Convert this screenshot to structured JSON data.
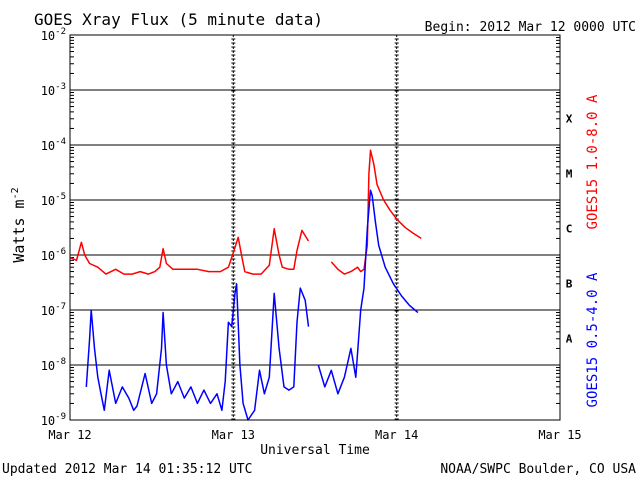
{
  "chart_data": {
    "type": "line",
    "title": "GOES Xray Flux (5 minute data)",
    "begin_label": "Begin:  2012 Mar 12 0000 UTC",
    "xlabel": "Universal Time",
    "ylabel_main": "Watts m",
    "ylabel_exp": "-2",
    "updated_label": "Updated 2012 Mar 14 01:35:12 UTC",
    "credit_label": "NOAA/SWPC Boulder, CO USA",
    "y_scale": "log",
    "ylim": [
      1e-09,
      0.01
    ],
    "y_ticks": [
      {
        "base": "10",
        "exp": "-2"
      },
      {
        "base": "10",
        "exp": "-3"
      },
      {
        "base": "10",
        "exp": "-4"
      },
      {
        "base": "10",
        "exp": "-5"
      },
      {
        "base": "10",
        "exp": "-6"
      },
      {
        "base": "10",
        "exp": "-7"
      },
      {
        "base": "10",
        "exp": "-8"
      },
      {
        "base": "10",
        "exp": "-9"
      }
    ],
    "x_unit": "days since 2012 Mar 12 0000 UTC",
    "xlim": [
      0,
      3
    ],
    "x_ticks": [
      "Mar 12",
      "Mar 13",
      "Mar 14",
      "Mar 15"
    ],
    "flare_classes": [
      "X",
      "M",
      "C",
      "B",
      "A"
    ],
    "flare_class_levels": [
      0.0001,
      1e-05,
      1e-06,
      1e-07,
      1e-08
    ],
    "series": [
      {
        "name": "GOES15 1.0-8.0 A",
        "color": "#ff0000",
        "segments": [
          [
            [
              0.0,
              9e-07
            ],
            [
              0.04,
              8e-07
            ],
            [
              0.07,
              1.7e-06
            ],
            [
              0.09,
              1e-06
            ],
            [
              0.12,
              7e-07
            ],
            [
              0.17,
              6e-07
            ],
            [
              0.22,
              4.5e-07
            ],
            [
              0.28,
              5.5e-07
            ],
            [
              0.33,
              4.5e-07
            ],
            [
              0.38,
              4.5e-07
            ],
            [
              0.43,
              5e-07
            ],
            [
              0.48,
              4.5e-07
            ],
            [
              0.52,
              5e-07
            ],
            [
              0.55,
              6e-07
            ],
            [
              0.57,
              1.3e-06
            ],
            [
              0.59,
              7e-07
            ],
            [
              0.63,
              5.5e-07
            ],
            [
              0.7,
              5.5e-07
            ],
            [
              0.78,
              5.5e-07
            ],
            [
              0.85,
              5e-07
            ],
            [
              0.92,
              5e-07
            ],
            [
              0.97,
              6e-07
            ],
            [
              1.0,
              1.1e-06
            ],
            [
              1.03,
              2.1e-06
            ],
            [
              1.05,
              1e-06
            ],
            [
              1.07,
              5e-07
            ],
            [
              1.12,
              4.5e-07
            ],
            [
              1.17,
              4.5e-07
            ],
            [
              1.22,
              6.5e-07
            ],
            [
              1.25,
              3e-06
            ],
            [
              1.28,
              1e-06
            ],
            [
              1.3,
              6e-07
            ],
            [
              1.34,
              5.5e-07
            ],
            [
              1.37,
              5.5e-07
            ],
            [
              1.39,
              1.2e-06
            ],
            [
              1.42,
              2.8e-06
            ],
            [
              1.46,
              1.8e-06
            ]
          ],
          [
            [
              1.6,
              7.5e-07
            ],
            [
              1.64,
              5.5e-07
            ],
            [
              1.68,
              4.5e-07
            ],
            [
              1.72,
              5e-07
            ],
            [
              1.76,
              6e-07
            ],
            [
              1.78,
              5e-07
            ],
            [
              1.8,
              5.5e-07
            ],
            [
              1.82,
              1.5e-06
            ],
            [
              1.83,
              3e-05
            ],
            [
              1.84,
              8e-05
            ],
            [
              1.86,
              4.5e-05
            ],
            [
              1.88,
              1.9e-05
            ],
            [
              1.92,
              1e-05
            ],
            [
              1.96,
              6.5e-06
            ],
            [
              2.0,
              4.5e-06
            ],
            [
              2.05,
              3.2e-06
            ],
            [
              2.1,
              2.5e-06
            ],
            [
              2.15,
              2e-06
            ]
          ]
        ]
      },
      {
        "name": "GOES15 0.5-4.0 A",
        "color": "#0000ff",
        "segments": [
          [
            [
              0.1,
              4e-09
            ],
            [
              0.12,
              3e-08
            ],
            [
              0.13,
              1e-07
            ],
            [
              0.15,
              2e-08
            ],
            [
              0.17,
              6e-09
            ],
            [
              0.19,
              3e-09
            ],
            [
              0.21,
              1.5e-09
            ],
            [
              0.24,
              8e-09
            ],
            [
              0.28,
              2e-09
            ],
            [
              0.32,
              4e-09
            ],
            [
              0.36,
              2.5e-09
            ],
            [
              0.39,
              1.5e-09
            ],
            [
              0.41,
              1.8e-09
            ],
            [
              0.46,
              7e-09
            ],
            [
              0.5,
              2e-09
            ],
            [
              0.53,
              3e-09
            ],
            [
              0.56,
              2e-08
            ],
            [
              0.57,
              9e-08
            ],
            [
              0.59,
              1e-08
            ],
            [
              0.62,
              3e-09
            ],
            [
              0.66,
              5e-09
            ],
            [
              0.7,
              2.5e-09
            ],
            [
              0.74,
              4e-09
            ],
            [
              0.78,
              2e-09
            ],
            [
              0.82,
              3.5e-09
            ],
            [
              0.86,
              2e-09
            ],
            [
              0.9,
              3e-09
            ],
            [
              0.93,
              1.5e-09
            ],
            [
              0.95,
              5e-09
            ],
            [
              0.97,
              6e-08
            ],
            [
              0.99,
              5e-08
            ],
            [
              1.01,
              2e-07
            ],
            [
              1.02,
              3e-07
            ],
            [
              1.04,
              1e-08
            ],
            [
              1.06,
              2e-09
            ],
            [
              1.09,
              1e-09
            ],
            [
              1.13,
              1.5e-09
            ],
            [
              1.16,
              8e-09
            ],
            [
              1.19,
              3e-09
            ],
            [
              1.22,
              6e-09
            ],
            [
              1.25,
              2e-07
            ],
            [
              1.28,
              2e-08
            ],
            [
              1.31,
              4e-09
            ],
            [
              1.34,
              3.5e-09
            ],
            [
              1.37,
              4e-09
            ],
            [
              1.39,
              6e-08
            ],
            [
              1.41,
              2.5e-07
            ],
            [
              1.44,
              1.5e-07
            ],
            [
              1.46,
              5e-08
            ]
          ],
          [
            [
              1.52,
              1e-08
            ],
            [
              1.56,
              4e-09
            ],
            [
              1.6,
              8e-09
            ],
            [
              1.64,
              3e-09
            ],
            [
              1.68,
              6e-09
            ],
            [
              1.72,
              2e-08
            ],
            [
              1.75,
              6e-09
            ],
            [
              1.78,
              1e-07
            ],
            [
              1.8,
              2.5e-07
            ],
            [
              1.82,
              3e-06
            ],
            [
              1.84,
              1.5e-05
            ],
            [
              1.85,
              1.2e-05
            ],
            [
              1.87,
              4e-06
            ],
            [
              1.89,
              1.5e-06
            ],
            [
              1.93,
              6e-07
            ],
            [
              1.98,
              3e-07
            ],
            [
              2.03,
              1.8e-07
            ],
            [
              2.08,
              1.2e-07
            ],
            [
              2.13,
              9e-08
            ]
          ]
        ]
      }
    ]
  }
}
